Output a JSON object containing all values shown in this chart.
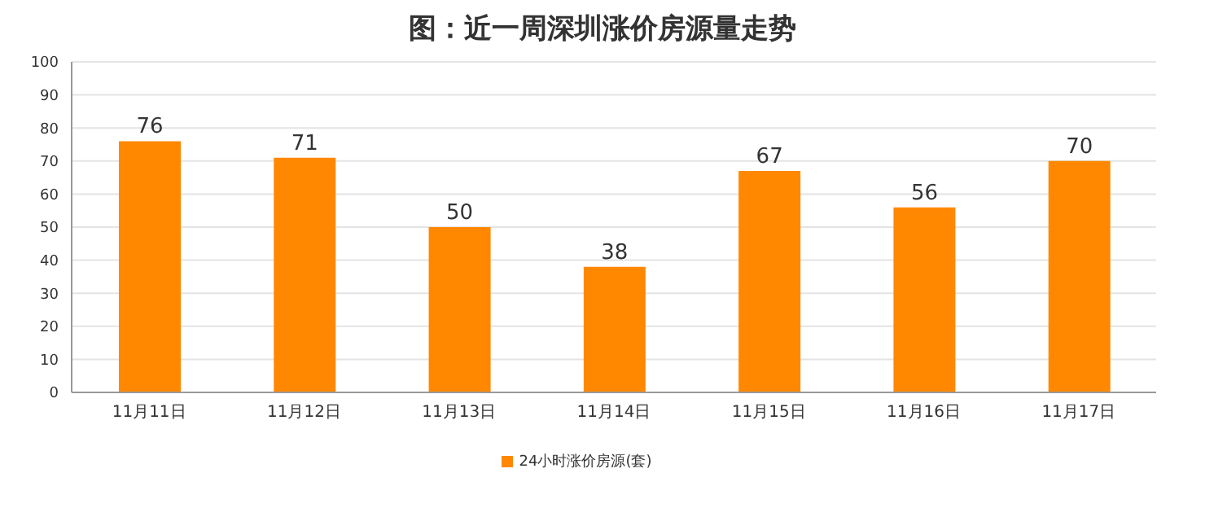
{
  "chart_data": {
    "type": "bar",
    "title": "图：近一周深圳涨价房源量走势",
    "categories": [
      "11月11日",
      "11月12日",
      "11月13日",
      "11月14日",
      "11月15日",
      "11月16日",
      "11月17日"
    ],
    "series": [
      {
        "name": "24小时涨价房源(套)",
        "color": "#ff8800",
        "values": [
          76,
          71,
          50,
          38,
          67,
          56,
          70
        ]
      }
    ],
    "ylim": [
      0,
      100
    ],
    "yticks": [
      0,
      10,
      20,
      30,
      40,
      50,
      60,
      70,
      80,
      90,
      100
    ],
    "grid": "y",
    "legend": "bottom",
    "data_labels": true
  }
}
